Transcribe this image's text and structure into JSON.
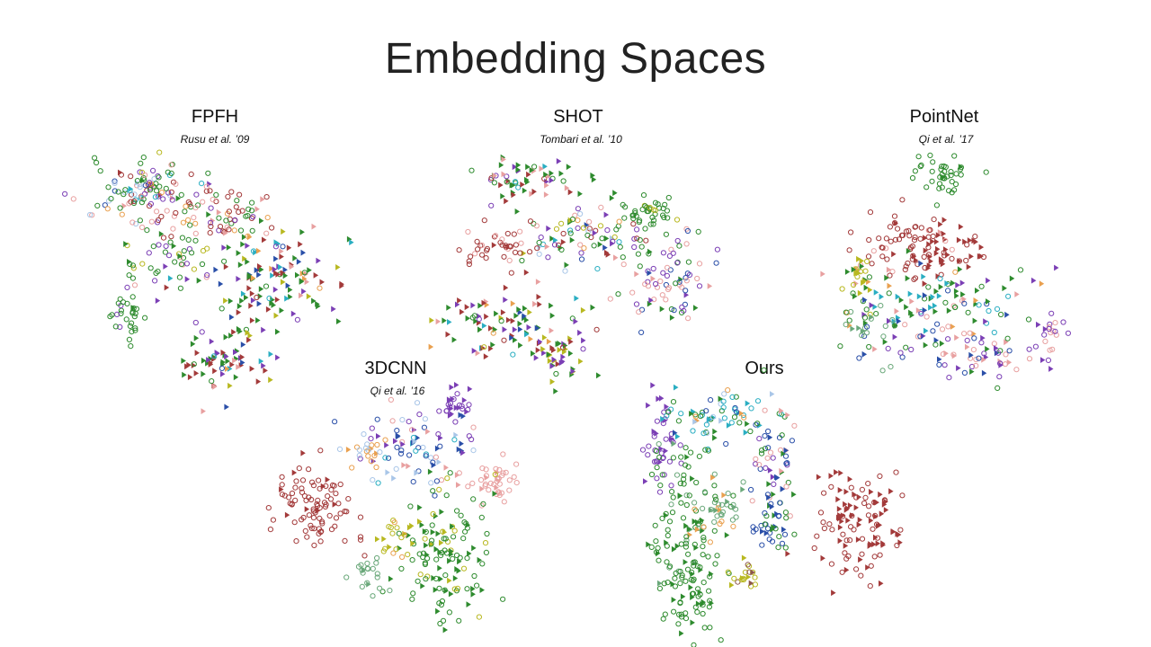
{
  "slide": {
    "title": "Embedding Spaces"
  },
  "colors": {
    "red": "#a33a3a",
    "green": "#2e8b2e",
    "purple": "#7b3fb5",
    "pink": "#e8a0a0",
    "olive": "#b8b820",
    "cyan": "#2aaec2",
    "blue": "#2a4fa8",
    "orange": "#e9a04f",
    "lightblue": "#a9c6e8",
    "seagreen": "#6aa87a",
    "brown": "#8c564b",
    "gray": "#888888"
  },
  "chart_data": [
    {
      "type": "scatter",
      "id": "fpfh",
      "title": "FPFH",
      "subtitle": "Rusu et al. ’09",
      "grid": false,
      "legend": "none",
      "marker_types": [
        "open-circle",
        "filled-triangle"
      ]
    },
    {
      "type": "scatter",
      "id": "shot",
      "title": "SHOT",
      "subtitle": "Tombari et al. ’10",
      "grid": false,
      "legend": "none",
      "marker_types": [
        "open-circle",
        "filled-triangle"
      ]
    },
    {
      "type": "scatter",
      "id": "pointnet",
      "title": "PointNet",
      "subtitle": "Qi et al. ’17",
      "grid": false,
      "legend": "none",
      "marker_types": [
        "open-circle",
        "filled-triangle"
      ]
    },
    {
      "type": "scatter",
      "id": "3dcnn",
      "title": "3DCNN",
      "subtitle": "Qi et al. ’16",
      "grid": false,
      "legend": "none",
      "marker_types": [
        "open-circle",
        "filled-triangle"
      ]
    },
    {
      "type": "scatter",
      "id": "ours",
      "title": "Ours",
      "subtitle": "",
      "grid": false,
      "legend": "none",
      "marker_types": [
        "open-circle",
        "filled-triangle"
      ]
    }
  ]
}
